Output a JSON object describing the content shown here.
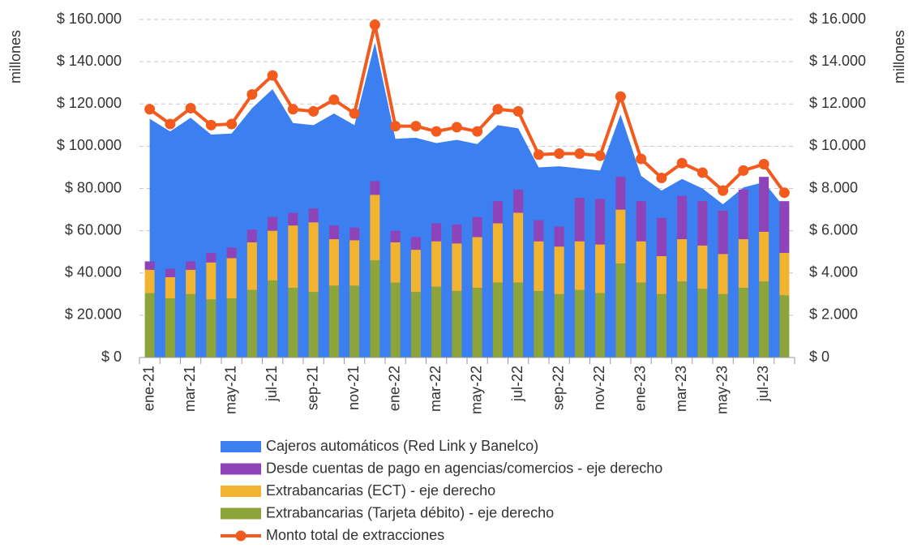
{
  "chart_data": {
    "type": "combo",
    "y_label": "millones",
    "y2_label": "millones",
    "categories": [
      "ene-21",
      null,
      "mar-21",
      null,
      "may-21",
      null,
      "jul-21",
      null,
      "sep-21",
      null,
      "nov-21",
      null,
      "ene-22",
      null,
      "mar-22",
      null,
      "may-22",
      null,
      "jul-22",
      null,
      "sep-22",
      null,
      "nov-22",
      null,
      "ene-23",
      null,
      "mar-23",
      null,
      "may-23",
      null,
      "jul-23",
      null
    ],
    "ylim": [
      0,
      160000
    ],
    "yticks": [
      {
        "value": 0,
        "label": "$ 0"
      },
      {
        "value": 20000,
        "label": "$ 20.000"
      },
      {
        "value": 40000,
        "label": "$ 40.000"
      },
      {
        "value": 60000,
        "label": "$ 60.000"
      },
      {
        "value": 80000,
        "label": "$ 80.000"
      },
      {
        "value": 100000,
        "label": "$ 100.000"
      },
      {
        "value": 120000,
        "label": "$ 120.000"
      },
      {
        "value": 140000,
        "label": "$ 140.000"
      },
      {
        "value": 160000,
        "label": "$ 160.000"
      }
    ],
    "y2lim": [
      0,
      16000
    ],
    "y2ticks": [
      {
        "value": 0,
        "label": "$ 0"
      },
      {
        "value": 2000,
        "label": "$ 2.000"
      },
      {
        "value": 4000,
        "label": "$ 4.000"
      },
      {
        "value": 6000,
        "label": "$ 6.000"
      },
      {
        "value": 8000,
        "label": "$ 8.000"
      },
      {
        "value": 10000,
        "label": "$ 10.000"
      },
      {
        "value": 12000,
        "label": "$ 12.000"
      },
      {
        "value": 14000,
        "label": "$ 14.000"
      },
      {
        "value": 16000,
        "label": "$ 16.000"
      }
    ],
    "grid": true,
    "legend": "bottom",
    "series": [
      {
        "name": "Cajeros automáticos (Red Link y Banelco)",
        "type": "area",
        "color": "#3b7ff0",
        "values": [
          113000,
          107000,
          113500,
          105500,
          106000,
          118000,
          127000,
          111000,
          110000,
          115500,
          110000,
          149000,
          103500,
          104000,
          101500,
          103000,
          101000,
          110000,
          108500,
          90000,
          90500,
          89500,
          88500,
          115000,
          86000,
          79000,
          84500,
          80000,
          72500,
          80500,
          83000,
          71000
        ]
      },
      {
        "name": "Desde cuentas de pago en agencias/comercios - eje derecho",
        "type": "bar",
        "axis": "y2",
        "color": "#8e44b8",
        "values": [
          400,
          400,
          400,
          450,
          500,
          600,
          650,
          600,
          650,
          650,
          600,
          650,
          550,
          600,
          850,
          900,
          950,
          1050,
          1100,
          1000,
          950,
          2050,
          2150,
          1550,
          1900,
          1800,
          2050,
          2100,
          2050,
          2350,
          2600,
          2450
        ]
      },
      {
        "name": "Extrabancarias (ECT) - eje derecho",
        "type": "bar",
        "axis": "y2",
        "color": "#f2b330",
        "values": [
          1100,
          1000,
          1150,
          1750,
          1900,
          2250,
          2350,
          2950,
          3300,
          2200,
          2150,
          3100,
          1900,
          2000,
          2150,
          2250,
          2400,
          2800,
          3300,
          2350,
          2250,
          2300,
          2300,
          2550,
          1950,
          1800,
          2000,
          2050,
          1900,
          2300,
          2350,
          2000
        ]
      },
      {
        "name": "Extrabancarias (Tarjeta débito) - eje derecho",
        "type": "bar",
        "axis": "y2",
        "color": "#8da43b",
        "values": [
          3050,
          2800,
          3000,
          2750,
          2800,
          3200,
          3650,
          3300,
          3100,
          3400,
          3400,
          4600,
          3550,
          3100,
          3350,
          3150,
          3300,
          3550,
          3550,
          3150,
          3000,
          3200,
          3050,
          4450,
          3550,
          3000,
          3600,
          3250,
          3000,
          3300,
          3600,
          2950
        ]
      },
      {
        "name": "Monto total de extracciones",
        "type": "line",
        "color": "#f25a1e",
        "values": [
          117500,
          110500,
          118000,
          110000,
          110500,
          124500,
          133500,
          117500,
          116500,
          122000,
          115500,
          157500,
          109500,
          109500,
          107000,
          109000,
          107000,
          117500,
          116500,
          96000,
          96500,
          96500,
          95500,
          123500,
          94000,
          85000,
          92000,
          87500,
          79000,
          88500,
          91500,
          78000
        ]
      }
    ]
  }
}
